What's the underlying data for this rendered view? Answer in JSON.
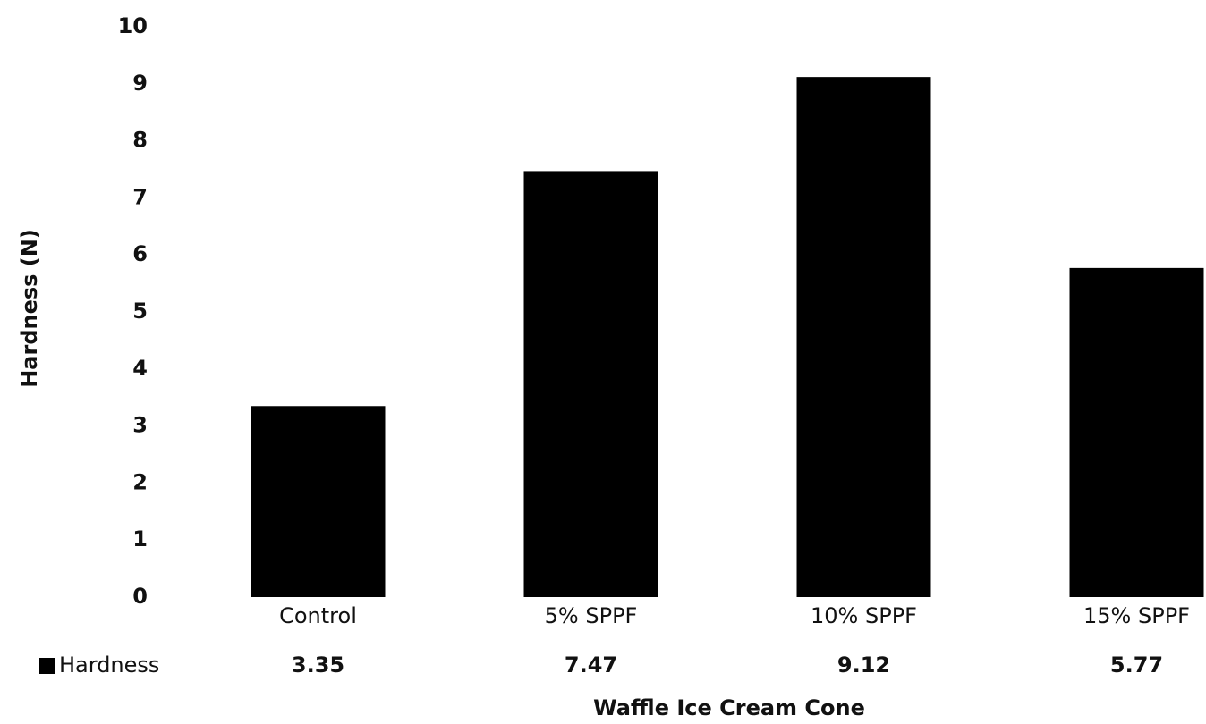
{
  "chart_data": {
    "type": "bar",
    "x_label": "Waffle Ice Cream Cone",
    "y_label": "Hardness (N)",
    "categories": [
      "Control",
      "5% SPPF",
      "10% SPPF",
      "15% SPPF"
    ],
    "series": [
      {
        "name": "Hardness",
        "color": "#000000",
        "values": [
          3.35,
          7.47,
          9.12,
          5.77
        ]
      }
    ],
    "ylim": [
      0,
      10
    ],
    "yticks": [
      0,
      1,
      2,
      3,
      4,
      5,
      6,
      7,
      8,
      9,
      10
    ],
    "grid": false,
    "legend": "bottom-left"
  }
}
